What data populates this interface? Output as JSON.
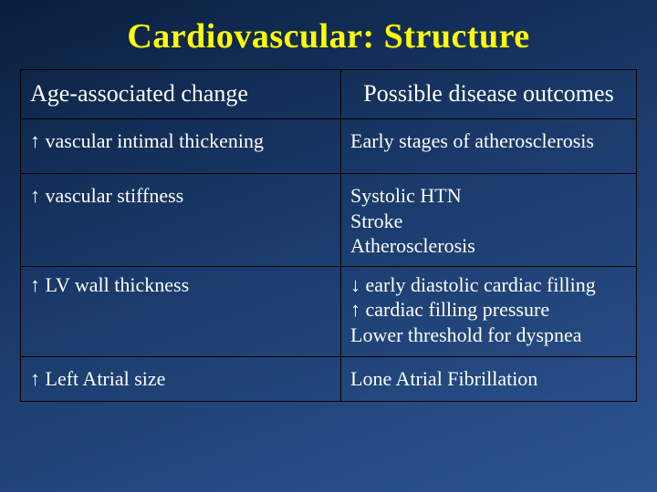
{
  "slide": {
    "title": "Cardiovascular: Structure",
    "title_color": "#ffff00",
    "background_gradient": [
      "#0a1f3d",
      "#1a3a6b",
      "#2d5490"
    ],
    "text_color": "#ffffff",
    "border_color": "#000000",
    "font_family": "Times New Roman"
  },
  "table": {
    "type": "table",
    "columns": [
      {
        "label": "Age-associated change",
        "align": "left",
        "width_pct": 52
      },
      {
        "label": "Possible disease outcomes",
        "align": "center",
        "width_pct": 48
      }
    ],
    "header_fontsize": 26,
    "cell_fontsize": 22,
    "rows": [
      {
        "change": "↑ vascular intimal thickening",
        "outcome": "Early stages of atherosclerosis"
      },
      {
        "change": "↑ vascular stiffness",
        "outcome": "Systolic HTN\nStroke\nAtherosclerosis"
      },
      {
        "change": "↑ LV wall thickness",
        "outcome": "↓ early diastolic cardiac filling\n↑ cardiac filling pressure\nLower threshold for dyspnea"
      },
      {
        "change": "↑ Left Atrial size",
        "outcome": "Lone Atrial Fibrillation"
      }
    ]
  }
}
